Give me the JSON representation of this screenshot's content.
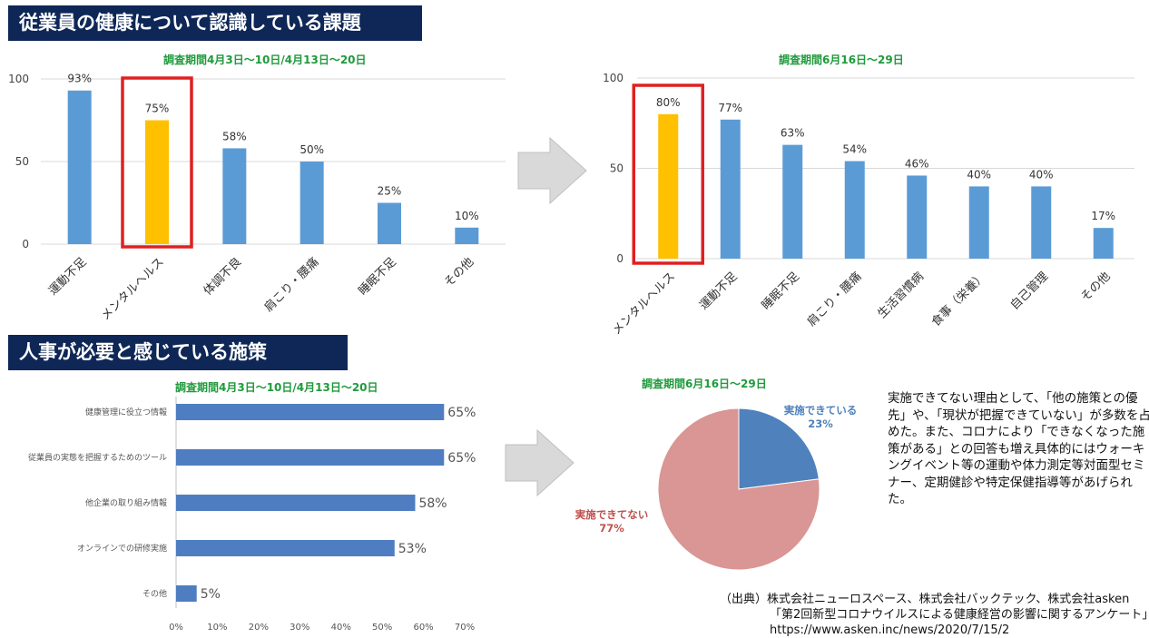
{
  "sections": {
    "top_title": "従業員の健康について認識している課題",
    "bottom_title": "人事が必要と感じている施策"
  },
  "colors": {
    "bar": "#5b9bd5",
    "highlight": "#ffc000",
    "highlight_border": "#e02020",
    "hbar": "#4e7ec1",
    "pie_done": "#4f81bd",
    "pie_not": "#d99694",
    "arrow": "#d9d9d9"
  },
  "note": "実施できてない理由として、「他の施策との優先」や、「現状が把握できていない」が多数を占めた。また、コロナにより「できなくなった施策がある」との回答も増え具体的にはウォーキングイベント等の運動や体力測定等対面型セミナー、定期健診や特定保健指導等があげられた。",
  "source": {
    "prefix": "（出典）",
    "line1": "株式会社ニューロスペース、株式会社バックテック、株式会社asken",
    "line2": "「第2回新型コロナウイルスによる健康経営の影響に関するアンケート」",
    "line3": "https://www.asken.inc/news/2020/7/15/2"
  },
  "chart_data": [
    {
      "type": "bar",
      "title": "調査期間4月3日～10日/4月13日～20日",
      "categories": [
        "運動不足",
        "メンタルヘルス",
        "体調不良",
        "肩こり・腰痛",
        "睡眠不足",
        "その他"
      ],
      "values": [
        93,
        75,
        58,
        50,
        25,
        10
      ],
      "data_labels": [
        "93%",
        "75%",
        "58%",
        "50%",
        "25%",
        "10%"
      ],
      "highlight_index": 1,
      "ylim": [
        0,
        100
      ],
      "yticks": [
        "0",
        "50",
        "100"
      ],
      "grid": true
    },
    {
      "type": "bar",
      "title": "調査期間6月16日～29日",
      "categories": [
        "メンタルヘルス",
        "運動不足",
        "睡眠不足",
        "肩こり・腰痛",
        "生活習慣病",
        "食事（栄養）",
        "自己管理",
        "その他"
      ],
      "values": [
        80,
        77,
        63,
        54,
        46,
        40,
        40,
        17
      ],
      "data_labels": [
        "80%",
        "77%",
        "63%",
        "54%",
        "46%",
        "40%",
        "40%",
        "17%"
      ],
      "highlight_index": 0,
      "ylim": [
        0,
        100
      ],
      "yticks": [
        "0",
        "50",
        "100"
      ],
      "grid": true
    },
    {
      "type": "bar",
      "orientation": "horizontal",
      "title": "調査期間4月3日～10日/4月13日～20日",
      "categories": [
        "健康管理に役立つ情報",
        "従業員の実態を把握するためのツール",
        "他企業の取り組み情報",
        "オンラインでの研修実施",
        "その他"
      ],
      "values": [
        65,
        65,
        58,
        53,
        5
      ],
      "data_labels": [
        "65%",
        "65%",
        "58%",
        "53%",
        "5%"
      ],
      "xlim": [
        0,
        70
      ],
      "xticks": [
        "0%",
        "10%",
        "20%",
        "30%",
        "40%",
        "50%",
        "60%",
        "70%"
      ]
    },
    {
      "type": "pie",
      "title": "調査期間6月16日～29日",
      "slices": [
        {
          "label": "実施できている",
          "value": 23,
          "value_label": "23%"
        },
        {
          "label": "実施できてない",
          "value": 77,
          "value_label": "77%"
        }
      ]
    }
  ]
}
